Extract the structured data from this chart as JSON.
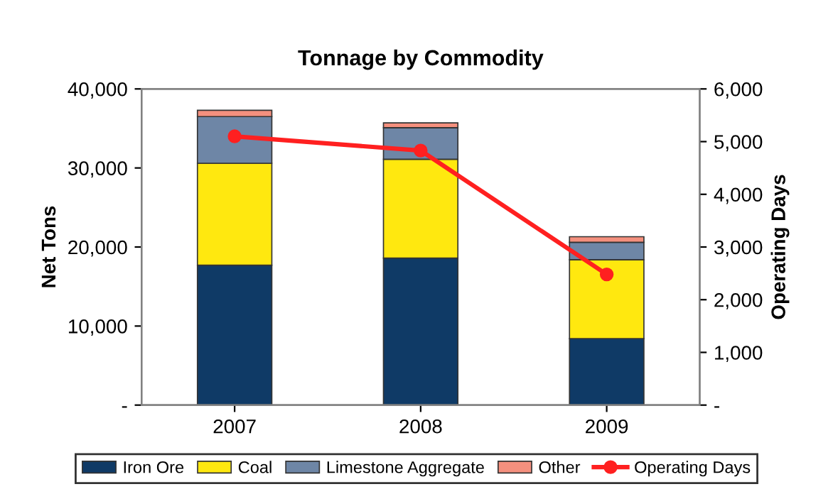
{
  "chart_data": {
    "type": "bar",
    "title": "Tonnage by Commodity",
    "ylabel": "Net Tons",
    "y2label": "Operating Days",
    "categories": [
      "2007",
      "2008",
      "2009"
    ],
    "stacked": true,
    "series": [
      {
        "name": "Iron Ore",
        "color": "#0f3a66",
        "values": [
          17700,
          18600,
          8400
        ]
      },
      {
        "name": "Coal",
        "color": "#ffe80f",
        "values": [
          12900,
          12500,
          10000
        ]
      },
      {
        "name": "Limestone Aggregate",
        "color": "#6e86a6",
        "values": [
          5900,
          4000,
          2200
        ]
      },
      {
        "name": "Other",
        "color": "#f4907e",
        "values": [
          800,
          600,
          700
        ]
      },
      {
        "name": "Operating Days",
        "type": "line",
        "axis": "y2",
        "color": "#ff2020",
        "marker": "circle",
        "values": [
          5100,
          4830,
          2480
        ]
      }
    ],
    "ylim": [
      0,
      40000
    ],
    "yticks": [
      {
        "value": 0,
        "label": "-"
      },
      {
        "value": 10000,
        "label": "10,000"
      },
      {
        "value": 20000,
        "label": "20,000"
      },
      {
        "value": 30000,
        "label": "30,000"
      },
      {
        "value": 40000,
        "label": "40,000"
      }
    ],
    "y2lim": [
      0,
      6000
    ],
    "y2ticks": [
      {
        "value": 0,
        "label": "-"
      },
      {
        "value": 1000,
        "label": "1,000"
      },
      {
        "value": 2000,
        "label": "2,000"
      },
      {
        "value": 3000,
        "label": "3,000"
      },
      {
        "value": 4000,
        "label": "4,000"
      },
      {
        "value": 5000,
        "label": "5,000"
      },
      {
        "value": 6000,
        "label": "6,000"
      }
    ],
    "grid": false,
    "legend": "bottom"
  }
}
